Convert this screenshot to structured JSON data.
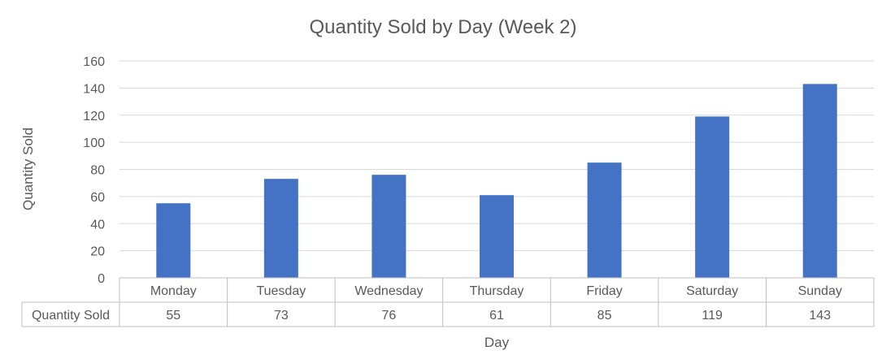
{
  "chart_data": {
    "type": "bar",
    "title": "Quantity Sold by Day (Week 2)",
    "xlabel": "Day",
    "ylabel": "Quantity Sold",
    "categories": [
      "Monday",
      "Tuesday",
      "Wednesday",
      "Thursday",
      "Friday",
      "Saturday",
      "Sunday"
    ],
    "series": [
      {
        "name": "Quantity Sold",
        "values": [
          55,
          73,
          76,
          61,
          85,
          119,
          143
        ]
      }
    ],
    "ylim": [
      0,
      160
    ],
    "yticks": [
      "0",
      "20",
      "40",
      "60",
      "80",
      "100",
      "120",
      "140",
      "160"
    ],
    "grid": true,
    "data_table": true,
    "legend": "none",
    "colors": {
      "bar": "#4472C4",
      "grid": "#D9D9D9",
      "table_border": "#BFBFBF",
      "text": "#595959",
      "title": "#595959"
    }
  }
}
